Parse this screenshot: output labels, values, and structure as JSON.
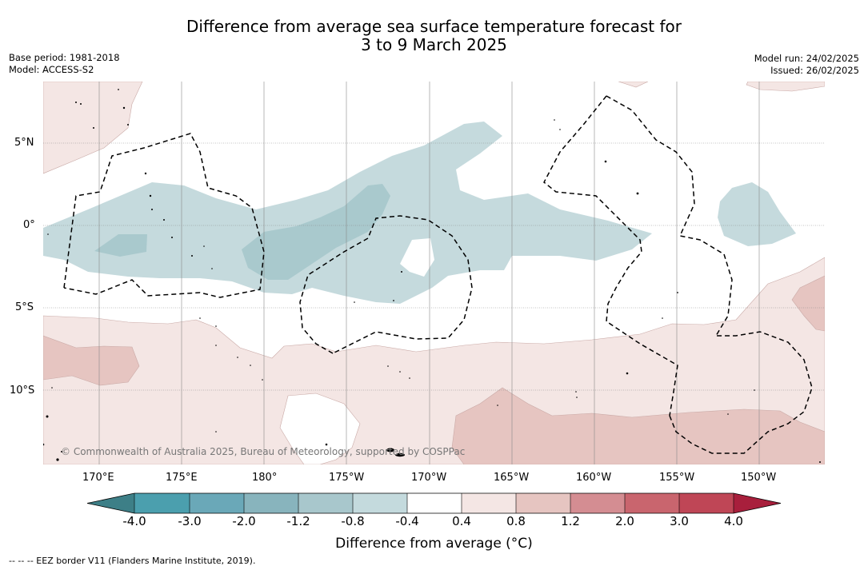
{
  "title_line1": "Difference from average sea surface temperature forecast for",
  "title_line2": "3 to 9 March 2025",
  "base_period": "Base period: 1981-2018",
  "model": "Model: ACCESS-S2",
  "model_run": "Model run: 24/02/2025",
  "issued": "Issued: 26/02/2025",
  "copyright": "© Commonwealth of Australia 2025, Bureau of Meteorology, supported by COSPPac",
  "footnote": "-- -- -- EEZ border V11 (Flanders Marine Institute, 2019).",
  "lat_labels": [
    "5°N",
    "0°",
    "5°S",
    "10°S"
  ],
  "lon_labels": [
    "170°E",
    "175°E",
    "180°",
    "175°W",
    "170°W",
    "165°W",
    "160°W",
    "155°W",
    "150°W"
  ],
  "colorbar": {
    "title": "Difference from average (°C)",
    "tick_labels": [
      "-4.0",
      "-3.0",
      "-2.0",
      "-1.2",
      "-0.8",
      "-0.4",
      "0.4",
      "0.8",
      "1.2",
      "2.0",
      "3.0",
      "4.0"
    ],
    "colors": [
      "#3d7f87",
      "#4b9fae",
      "#6aa8b8",
      "#88b4bd",
      "#a8c7cc",
      "#c4dadd",
      "#ffffff",
      "#f4e6e4",
      "#e6c5c1",
      "#d48d92",
      "#c9656e",
      "#bf4656",
      "#a81f3c"
    ]
  },
  "map_colors": {
    "cool_light": "#c5dadd",
    "cool_mid": "#a9c9cd",
    "warm_light": "#f4e6e4",
    "warm_mid": "#e6c5c1"
  }
}
